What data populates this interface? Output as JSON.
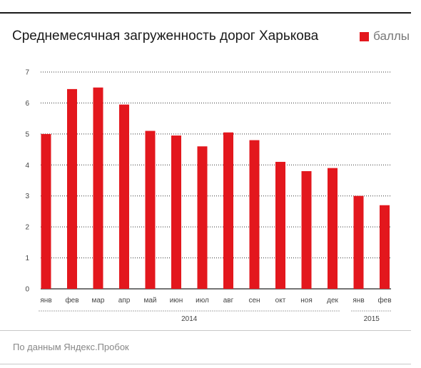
{
  "header": {
    "title": "Среднемесячная загруженность дорог Харькова"
  },
  "legend": {
    "label": "баллы",
    "color": "#e3171d"
  },
  "footer": {
    "source": "По данным Яндекс.Пробок"
  },
  "chart_data": {
    "type": "bar",
    "title": "Среднемесячная загруженность дорог Харькова",
    "categories": [
      "янв",
      "фев",
      "мар",
      "апр",
      "май",
      "июн",
      "июл",
      "авг",
      "сен",
      "окт",
      "ноя",
      "дек",
      "янв",
      "фев"
    ],
    "series": [
      {
        "name": "баллы",
        "values": [
          5.0,
          6.45,
          6.5,
          5.95,
          5.1,
          4.95,
          4.6,
          5.05,
          4.8,
          4.1,
          3.8,
          3.9,
          3.0,
          2.7
        ]
      }
    ],
    "year_groups": [
      {
        "label": "2014",
        "from": 0,
        "to": 11
      },
      {
        "label": "2015",
        "from": 12,
        "to": 13
      }
    ],
    "yticks": [
      0,
      1,
      2,
      3,
      4,
      5,
      6,
      7
    ],
    "ylim": [
      0,
      7
    ],
    "grid": true,
    "legend_position": "top-right",
    "bar_color": "#e3171d"
  }
}
